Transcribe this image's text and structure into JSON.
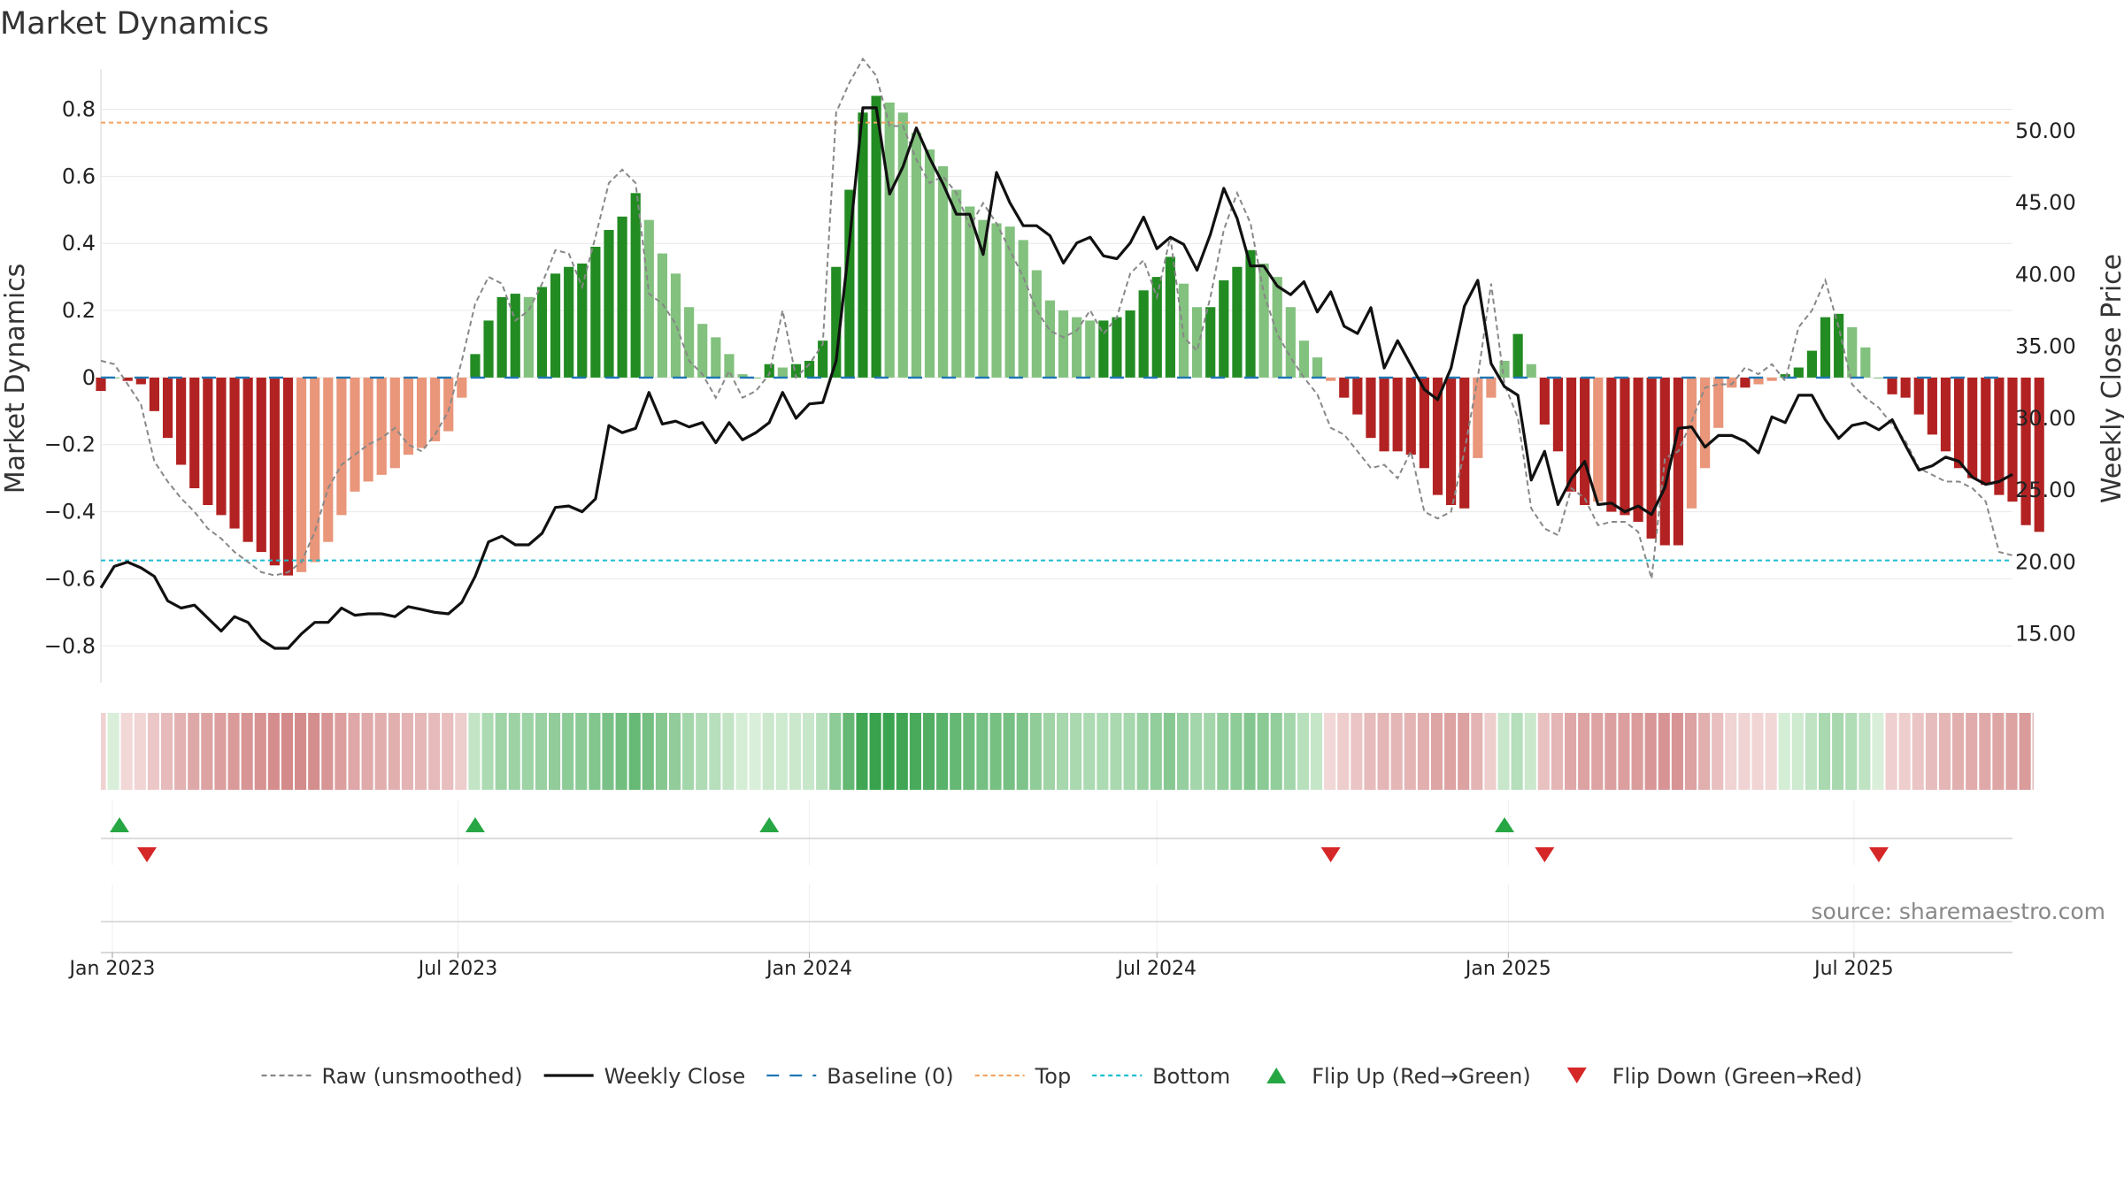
{
  "chart_data": {
    "type": "bar",
    "title": "Market Dynamics",
    "ylabel_left": "Market Dynamics",
    "ylabel_right": "Weekly Close Price",
    "source": "source: sharemaestro.com",
    "x_start": "2022-12-26",
    "x_step_days": 7,
    "x_range": [
      "2022-12-26",
      "2025-09-22"
    ],
    "y_left_lim": [
      -0.91,
      0.92
    ],
    "y_right_lim": [
      11.6,
      54.3
    ],
    "y_left_ticks": [
      "0.8",
      "0.6",
      "0.4",
      "0.2",
      "0",
      "−0.2",
      "−0.4",
      "−0.6",
      "−0.8"
    ],
    "y_left_tick_values": [
      0.8,
      0.6,
      0.4,
      0.2,
      0,
      -0.2,
      -0.4,
      -0.6,
      -0.8
    ],
    "y_right_ticks": [
      "50.00",
      "45.00",
      "40.00",
      "35.00",
      "30.00",
      "25.00",
      "20.00",
      "15.00"
    ],
    "y_right_tick_values": [
      50,
      45,
      40,
      35,
      30,
      25,
      20,
      15
    ],
    "x_ticks": [
      {
        "label": "Jan 2023",
        "date": "2023-01-01"
      },
      {
        "label": "Jul 2023",
        "date": "2023-07-01"
      },
      {
        "label": "Jan 2024",
        "date": "2024-01-01"
      },
      {
        "label": "Jul 2024",
        "date": "2024-07-01"
      },
      {
        "label": "Jan 2025",
        "date": "2025-01-01"
      },
      {
        "label": "Jul 2025",
        "date": "2025-07-01"
      }
    ],
    "lines": {
      "top": 0.76,
      "bottom": -0.545,
      "baseline": 0
    },
    "series": [
      {
        "name": "Market Dynamics (smoothed)",
        "type": "bar",
        "values": [
          -0.04,
          0,
          -0.01,
          -0.02,
          -0.1,
          -0.18,
          -0.26,
          -0.33,
          -0.38,
          -0.41,
          -0.45,
          -0.49,
          -0.52,
          -0.56,
          -0.59,
          -0.58,
          -0.55,
          -0.49,
          -0.41,
          -0.34,
          -0.31,
          -0.29,
          -0.27,
          -0.23,
          -0.21,
          -0.19,
          -0.16,
          -0.06,
          0.07,
          0.17,
          0.24,
          0.25,
          0.24,
          0.27,
          0.31,
          0.33,
          0.34,
          0.39,
          0.44,
          0.48,
          0.55,
          0.47,
          0.37,
          0.31,
          0.21,
          0.16,
          0.12,
          0.07,
          0.01,
          0,
          0.04,
          0.03,
          0.04,
          0.05,
          0.11,
          0.33,
          0.56,
          0.79,
          0.84,
          0.82,
          0.79,
          0.73,
          0.68,
          0.63,
          0.56,
          0.51,
          0.47,
          0.46,
          0.45,
          0.41,
          0.32,
          0.23,
          0.2,
          0.18,
          0.17,
          0.17,
          0.18,
          0.2,
          0.26,
          0.3,
          0.36,
          0.28,
          0.21,
          0.21,
          0.29,
          0.33,
          0.38,
          0.34,
          0.3,
          0.21,
          0.11,
          0.06,
          -0.01,
          -0.06,
          -0.11,
          -0.18,
          -0.22,
          -0.22,
          -0.23,
          -0.27,
          -0.35,
          -0.38,
          -0.39,
          -0.24,
          -0.06,
          0.05,
          0.13,
          0.04,
          -0.14,
          -0.22,
          -0.34,
          -0.38,
          -0.37,
          -0.4,
          -0.41,
          -0.43,
          -0.48,
          -0.5,
          -0.5,
          -0.39,
          -0.27,
          -0.15,
          -0.03,
          -0.03,
          -0.02,
          -0.01,
          0.01,
          0.03,
          0.08,
          0.18,
          0.19,
          0.15,
          0.09,
          0,
          -0.05,
          -0.06,
          -0.11,
          -0.17,
          -0.22,
          -0.27,
          -0.3,
          -0.32,
          -0.35,
          -0.37,
          -0.44,
          -0.46
        ]
      },
      {
        "name": "Raw (unsmoothed)",
        "type": "line",
        "values": [
          0.05,
          0.04,
          -0.02,
          -0.08,
          -0.25,
          -0.31,
          -0.36,
          -0.4,
          -0.45,
          -0.48,
          -0.52,
          -0.55,
          -0.58,
          -0.59,
          -0.58,
          -0.55,
          -0.46,
          -0.33,
          -0.26,
          -0.23,
          -0.2,
          -0.18,
          -0.15,
          -0.2,
          -0.22,
          -0.17,
          -0.1,
          0.05,
          0.22,
          0.3,
          0.28,
          0.17,
          0.2,
          0.28,
          0.38,
          0.37,
          0.27,
          0.42,
          0.58,
          0.62,
          0.58,
          0.25,
          0.22,
          0.16,
          0.05,
          0.01,
          -0.06,
          0.02,
          -0.06,
          -0.04,
          0.01,
          0.2,
          0.0,
          0.04,
          0.1,
          0.79,
          0.88,
          0.95,
          0.9,
          0.75,
          0.75,
          0.65,
          0.58,
          0.6,
          0.55,
          0.45,
          0.52,
          0.46,
          0.38,
          0.3,
          0.2,
          0.14,
          0.12,
          0.14,
          0.2,
          0.13,
          0.18,
          0.31,
          0.35,
          0.24,
          0.42,
          0.12,
          0.08,
          0.24,
          0.44,
          0.55,
          0.46,
          0.25,
          0.13,
          0.06,
          0.0,
          -0.05,
          -0.15,
          -0.17,
          -0.22,
          -0.27,
          -0.26,
          -0.3,
          -0.22,
          -0.4,
          -0.42,
          -0.4,
          -0.22,
          0.0,
          0.28,
          -0.02,
          -0.12,
          -0.39,
          -0.45,
          -0.47,
          -0.33,
          -0.36,
          -0.44,
          -0.43,
          -0.43,
          -0.46,
          -0.6,
          -0.24,
          -0.22,
          -0.13,
          -0.03,
          -0.02,
          -0.02,
          0.03,
          0.01,
          0.04,
          -0.01,
          0.15,
          0.2,
          0.29,
          0.15,
          -0.02,
          -0.06,
          -0.09,
          -0.14,
          -0.19,
          -0.27,
          -0.29,
          -0.31,
          -0.31,
          -0.33,
          -0.37,
          -0.52,
          -0.53
        ]
      },
      {
        "name": "Weekly Close",
        "type": "line",
        "axis": "right",
        "values": [
          18.2,
          19.7,
          20.0,
          19.6,
          19.0,
          17.3,
          16.8,
          17.0,
          16.1,
          15.2,
          16.2,
          15.8,
          14.6,
          14.0,
          14.0,
          15.0,
          15.8,
          15.8,
          16.8,
          16.3,
          16.4,
          16.4,
          16.2,
          16.9,
          16.7,
          16.5,
          16.4,
          17.2,
          19.0,
          21.4,
          21.8,
          21.2,
          21.2,
          22.0,
          23.8,
          23.9,
          23.5,
          24.4,
          29.5,
          29.0,
          29.3,
          31.8,
          29.6,
          29.8,
          29.4,
          29.7,
          28.3,
          29.7,
          28.5,
          29.0,
          29.7,
          31.8,
          30.0,
          31.0,
          31.1,
          34.0,
          42.3,
          51.6,
          51.6,
          45.6,
          47.5,
          50.2,
          48.1,
          46.3,
          44.2,
          44.2,
          41.4,
          47.1,
          45.0,
          43.4,
          43.4,
          42.7,
          40.8,
          42.2,
          42.6,
          41.3,
          41.1,
          42.2,
          44.0,
          41.8,
          42.6,
          42.1,
          40.3,
          42.8,
          46.0,
          43.9,
          40.6,
          40.6,
          39.2,
          38.6,
          39.5,
          37.4,
          38.8,
          36.4,
          35.9,
          37.7,
          33.5,
          35.4,
          33.7,
          32.0,
          31.3,
          33.5,
          37.8,
          39.6,
          33.8,
          32.2,
          31.6,
          25.7,
          27.7,
          24.0,
          25.8,
          27.0,
          24.0,
          24.1,
          23.5,
          23.9,
          23.3,
          25.2,
          29.3,
          29.4,
          28.0,
          28.8,
          28.8,
          28.4,
          27.6,
          30.1,
          29.7,
          31.6,
          31.6,
          29.9,
          28.6,
          29.5,
          29.7,
          29.2,
          29.9,
          28.1,
          26.4,
          26.7,
          27.3,
          27.0,
          25.9,
          25.4,
          25.6,
          26.1
        ]
      }
    ]
  },
  "legend": [
    {
      "label": "Raw (unsmoothed)",
      "kind": "dashed",
      "color": "#888888"
    },
    {
      "label": "Weekly Close",
      "kind": "solid",
      "color": "#111111"
    },
    {
      "label": "Baseline (0)",
      "kind": "longdash",
      "color": "#1f77b4"
    },
    {
      "label": "Top",
      "kind": "dotted",
      "color": "#f4a261"
    },
    {
      "label": "Bottom",
      "kind": "dotted",
      "color": "#17becf"
    },
    {
      "label": "Flip Up (Red→Green)",
      "kind": "triangle-up",
      "color": "#27a744"
    },
    {
      "label": "Flip Down (Green→Red)",
      "kind": "triangle-down",
      "color": "#d62728"
    }
  ],
  "colors": {
    "strong_up": "#228b22",
    "weak_up": "#82c17e",
    "strong_down": "#b22222",
    "weak_down": "#e9967a",
    "top_line": "#f4a261",
    "bottom_line": "#17becf",
    "baseline": "#1f77b4",
    "price_line": "#111111",
    "raw_line": "#888888"
  }
}
